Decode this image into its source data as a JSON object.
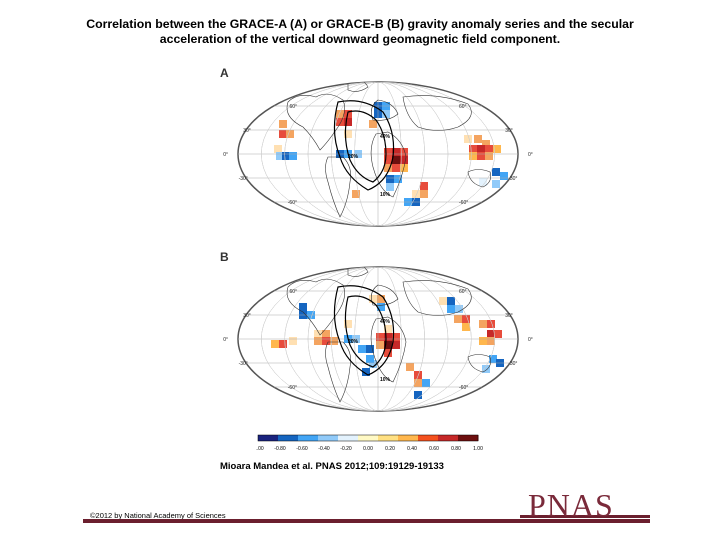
{
  "title": {
    "line1": "Correlation between the GRACE-A (A) or GRACE-B (B) gravity anomaly series and the secular",
    "line2": "acceleration of the vertical downward geomagnetic field component."
  },
  "panels": [
    {
      "label": "A",
      "lat_labels": [
        "60°",
        "30°",
        "0°",
        "-30°",
        "-60°"
      ],
      "contour_labels": [
        "40%",
        "20%",
        "10%"
      ]
    },
    {
      "label": "B",
      "lat_labels": [
        "60°",
        "30°",
        "0°",
        "-30°",
        "-60°"
      ],
      "contour_labels": [
        "40%",
        "20%",
        "10%"
      ]
    }
  ],
  "colorbar": {
    "ticks": [
      "-1.00",
      "-0.80",
      "-0.60",
      "-0.40",
      "-0.20",
      "0.00",
      "0.20",
      "0.40",
      "0.60",
      "0.80",
      "1.00"
    ],
    "colors": [
      "#1a237e",
      "#1565c0",
      "#42a5f5",
      "#90caf9",
      "#e3f2fd",
      "#fff9c4",
      "#ffe082",
      "#ffb74d",
      "#f4511e",
      "#c62828",
      "#6d0f0f"
    ]
  },
  "citation": "Mioara Mandea et al. PNAS 2012;109:19129-19133",
  "copyright": "©2012 by National Academy of Sciences",
  "logo": "PNAS"
}
